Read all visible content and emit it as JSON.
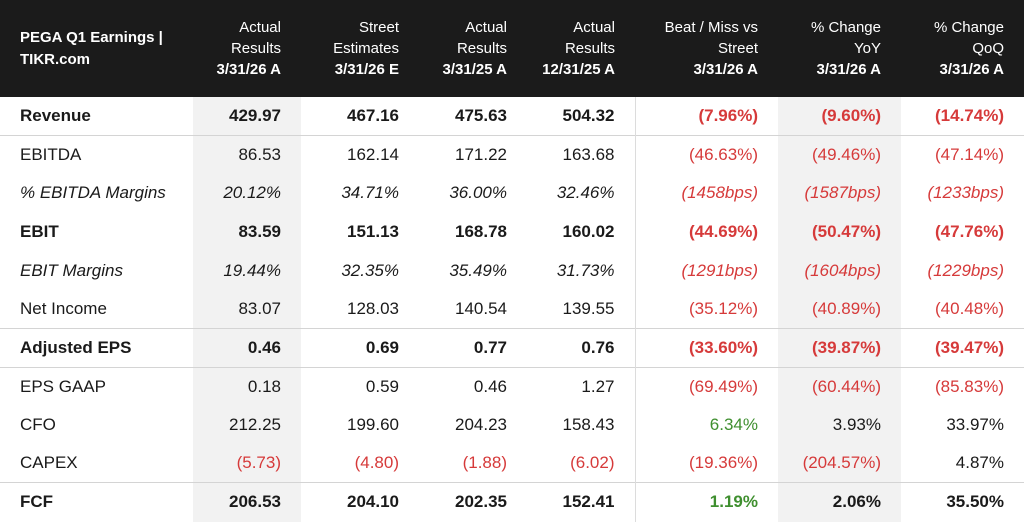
{
  "header": {
    "title_line1": "PEGA Q1 Earnings |",
    "title_line2": "TIKR.com",
    "columns": [
      {
        "line1": "Actual",
        "line2": "Results",
        "date": "3/31/26 A"
      },
      {
        "line1": "Street",
        "line2": "Estimates",
        "date": "3/31/26 E"
      },
      {
        "line1": "Actual",
        "line2": "Results",
        "date": "3/31/25 A"
      },
      {
        "line1": "Actual",
        "line2": "Results",
        "date": "12/31/25 A"
      },
      {
        "line1": "Beat / Miss vs",
        "line2": "Street",
        "date": "3/31/26 A"
      },
      {
        "line1": "% Change",
        "line2": "YoY",
        "date": "3/31/26 A"
      },
      {
        "line1": "% Change",
        "line2": "QoQ",
        "date": "3/31/26 A"
      }
    ]
  },
  "rows": [
    {
      "label": "Revenue",
      "values": [
        "429.97",
        "467.16",
        "475.63",
        "504.32",
        "(7.96%)",
        "(9.60%)",
        "(14.74%)"
      ]
    },
    {
      "label": "EBITDA",
      "values": [
        "86.53",
        "162.14",
        "171.22",
        "163.68",
        "(46.63%)",
        "(49.46%)",
        "(47.14%)"
      ]
    },
    {
      "label": "% EBITDA Margins",
      "values": [
        "20.12%",
        "34.71%",
        "36.00%",
        "32.46%",
        "(1458bps)",
        "(1587bps)",
        "(1233bps)"
      ]
    },
    {
      "label": "EBIT",
      "values": [
        "83.59",
        "151.13",
        "168.78",
        "160.02",
        "(44.69%)",
        "(50.47%)",
        "(47.76%)"
      ]
    },
    {
      "label": "EBIT Margins",
      "values": [
        "19.44%",
        "32.35%",
        "35.49%",
        "31.73%",
        "(1291bps)",
        "(1604bps)",
        "(1229bps)"
      ]
    },
    {
      "label": "Net Income",
      "values": [
        "83.07",
        "128.03",
        "140.54",
        "139.55",
        "(35.12%)",
        "(40.89%)",
        "(40.48%)"
      ]
    },
    {
      "label": "Adjusted EPS",
      "values": [
        "0.46",
        "0.69",
        "0.77",
        "0.76",
        "(33.60%)",
        "(39.87%)",
        "(39.47%)"
      ]
    },
    {
      "label": "EPS GAAP",
      "values": [
        "0.18",
        "0.59",
        "0.46",
        "1.27",
        "(69.49%)",
        "(60.44%)",
        "(85.83%)"
      ]
    },
    {
      "label": "CFO",
      "values": [
        "212.25",
        "199.60",
        "204.23",
        "158.43",
        "6.34%",
        "3.93%",
        "33.97%"
      ]
    },
    {
      "label": "CAPEX",
      "values": [
        "(5.73)",
        "(4.80)",
        "(1.88)",
        "(6.02)",
        "(19.36%)",
        "(204.57%)",
        "4.87%"
      ]
    },
    {
      "label": "FCF",
      "values": [
        "206.53",
        "204.10",
        "202.35",
        "152.41",
        "1.19%",
        "2.06%",
        "35.50%"
      ]
    }
  ],
  "colors": {
    "header_bg": "#1b1b1b",
    "negative": "#d63a3a",
    "positive": "#3f8f2f",
    "shaded_column": "#f2f2f2"
  }
}
